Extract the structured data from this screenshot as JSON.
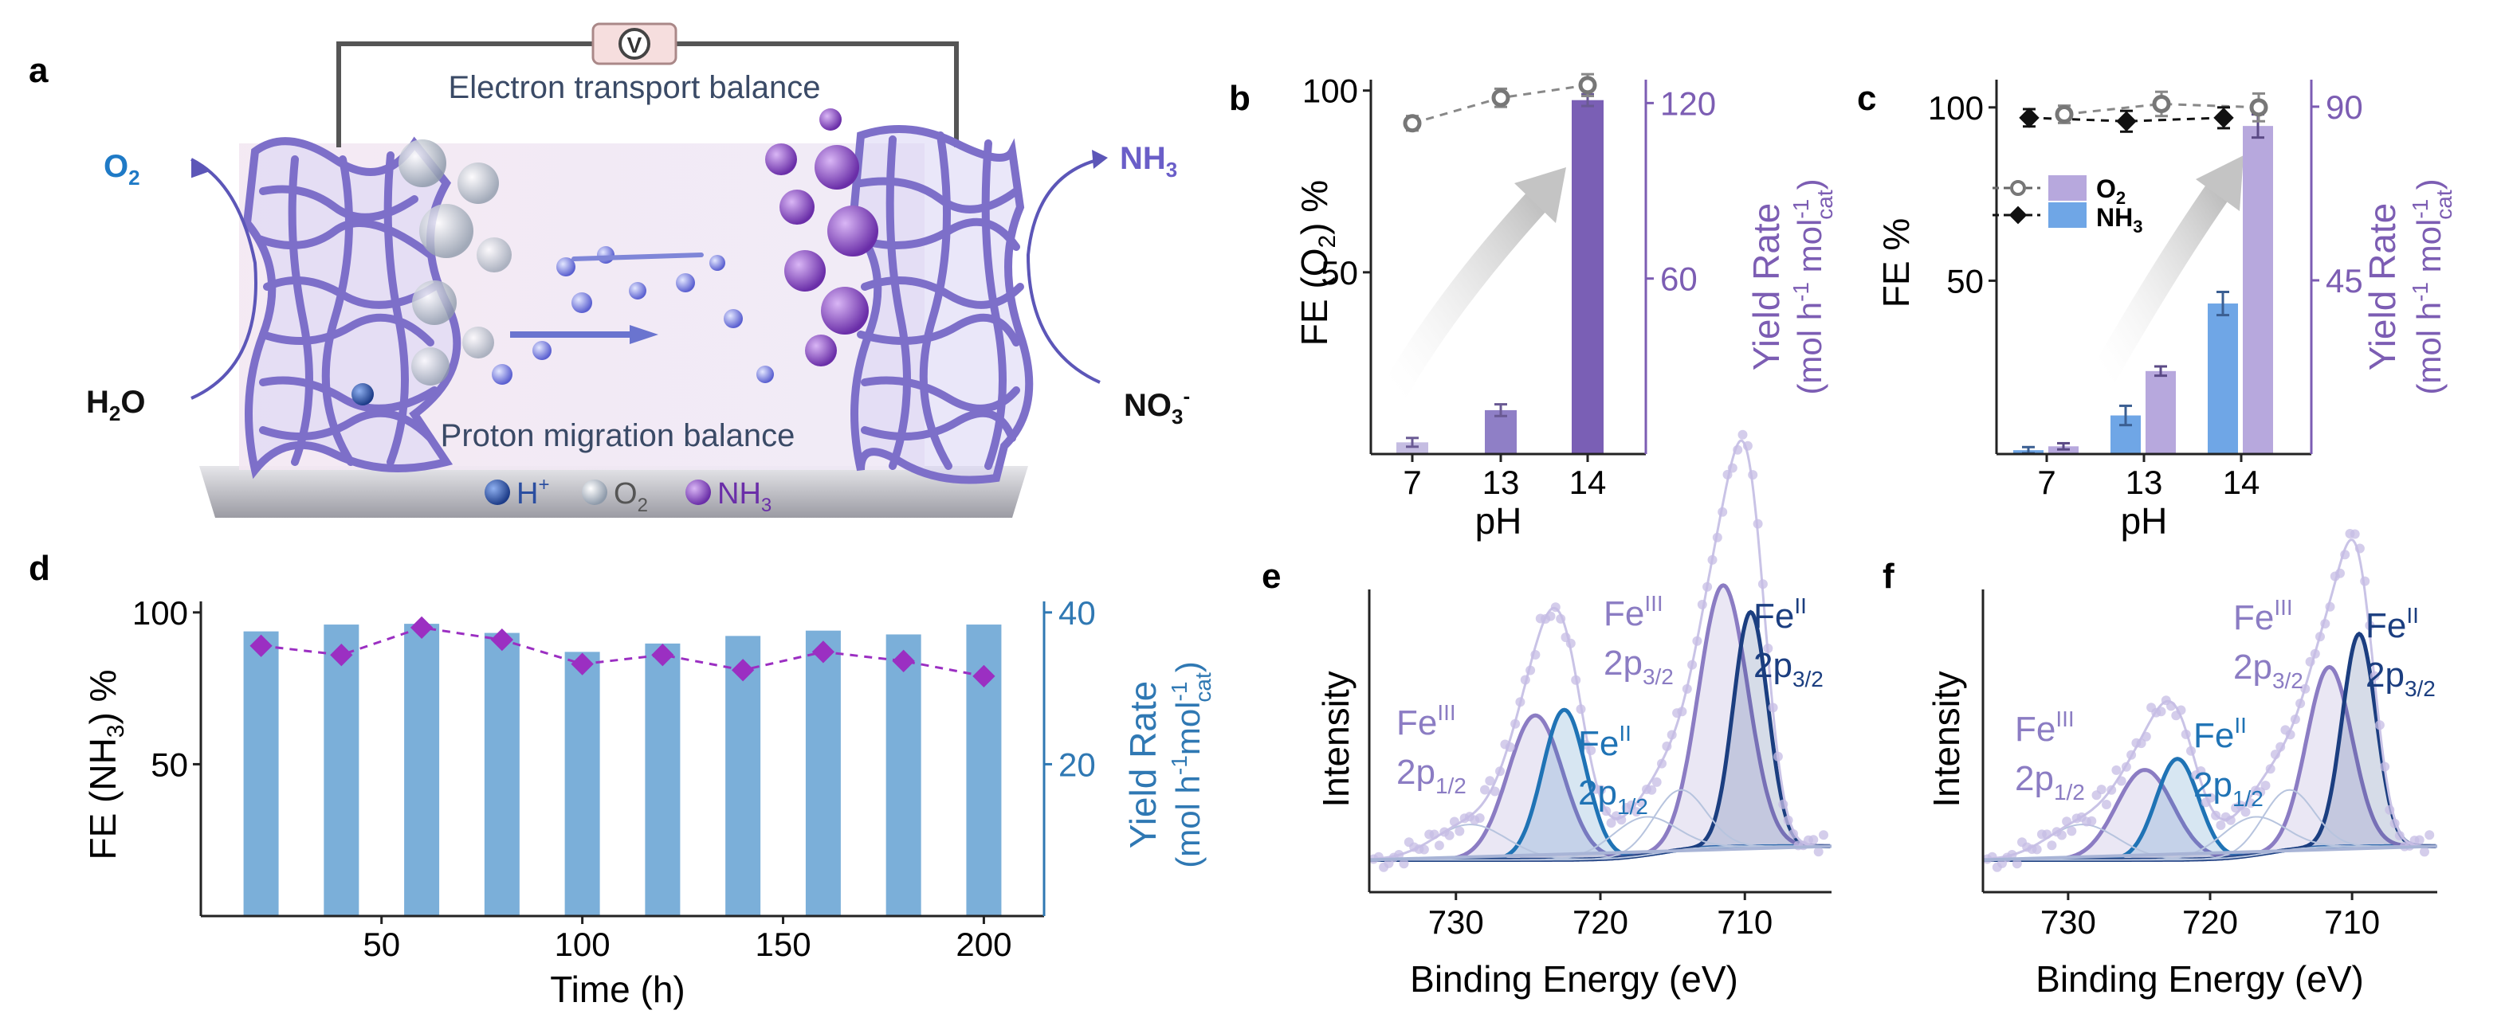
{
  "panel_labels": {
    "a": "a",
    "b": "b",
    "c": "c",
    "d": "d",
    "e": "e",
    "f": "f"
  },
  "panel_a": {
    "voltmeter_symbol": "V",
    "electron_text": "Electron transport balance",
    "proton_text": "Proton migration balance",
    "o2_out": "O",
    "o2_out_sub": "2",
    "h2o_in": "H",
    "h2o_in_sub": "2",
    "h2o_in_tail": "O",
    "nh3_out": "NH",
    "nh3_out_sub": "3",
    "no3_in": "NO",
    "no3_in_sub": "3",
    "no3_in_sup": "-",
    "legend": {
      "h": "H",
      "h_sup": "+",
      "o2": "O",
      "o2_sub": "2",
      "nh3": "NH",
      "nh3_sub": "3"
    },
    "colors": {
      "h": "#2b4ea0",
      "o2": "#c9d2de",
      "nh3": "#8457b6",
      "mesh": "#7d6fc9",
      "o2_label": "#1f7ac6",
      "nh3_label": "#6a5ec8"
    }
  },
  "chart_data": [
    {
      "panel": "b",
      "type": "bar+line",
      "categories": [
        "7",
        "13",
        "14"
      ],
      "xlabel": "pH",
      "ylabel_left": "FE (O2) %",
      "ylabel_right_1": "Yield Rate",
      "ylabel_right_2": "(mol h-1 mol-1cat)",
      "left_ticks": [
        "100",
        "50"
      ],
      "left_tick_values": [
        100,
        50
      ],
      "ylim_left": [
        0,
        103
      ],
      "right_ticks": [
        "120",
        "60"
      ],
      "right_tick_values": [
        120,
        60
      ],
      "ylim_right": [
        0,
        128
      ],
      "series": [
        {
          "name": "FE (O2)",
          "axis": "left",
          "kind": "line",
          "values": [
            91,
            98,
            101.5
          ],
          "errors": [
            2,
            2.5,
            3
          ]
        },
        {
          "name": "Yield Rate",
          "axis": "right",
          "kind": "bar",
          "values": [
            4,
            15,
            121
          ],
          "errors": [
            1.5,
            2,
            2
          ],
          "colors": [
            "#c5bde2",
            "#8f7fc6",
            "#7a5fb5"
          ]
        }
      ]
    },
    {
      "panel": "c",
      "type": "bar+line",
      "categories": [
        "7",
        "13",
        "14"
      ],
      "xlabel": "pH",
      "ylabel_left": "FE %",
      "ylabel_right_1": "Yield Rate",
      "ylabel_right_2": "(mol h-1 mol-1cat)",
      "left_ticks": [
        "100",
        "50"
      ],
      "left_tick_values": [
        100,
        50
      ],
      "ylim_left": [
        0,
        108
      ],
      "right_ticks": [
        "90",
        "45"
      ],
      "right_tick_values": [
        90,
        45
      ],
      "ylim_right": [
        0,
        97
      ],
      "legend": [
        {
          "label": "O2"
        },
        {
          "label": "NH3"
        }
      ],
      "series": [
        {
          "name": "O2 FE",
          "axis": "left",
          "kind": "line",
          "values": [
            98,
            101,
            100
          ],
          "errors": [
            2.5,
            3.5,
            4
          ]
        },
        {
          "name": "NH3 FE",
          "axis": "left",
          "kind": "line",
          "values": [
            97,
            96,
            97
          ],
          "errors": [
            2.5,
            3,
            3
          ]
        },
        {
          "name": "NH3 yield",
          "axis": "right",
          "kind": "bar",
          "values": [
            1,
            10,
            39
          ],
          "errors": [
            0.8,
            2.5,
            3
          ],
          "color": "#6fa6e6"
        },
        {
          "name": "O2 yield",
          "axis": "right",
          "kind": "bar",
          "values": [
            2,
            21.5,
            85
          ],
          "errors": [
            0.8,
            1.2,
            3
          ],
          "color": "#b7a8dd"
        }
      ]
    },
    {
      "panel": "d",
      "type": "bar+line",
      "x": [
        20,
        40,
        60,
        80,
        100,
        120,
        140,
        160,
        180,
        200
      ],
      "xticks": [
        "50",
        "100",
        "150",
        "200"
      ],
      "xtick_values": [
        50,
        100,
        150,
        200
      ],
      "xlim": [
        5,
        215
      ],
      "xlabel": "Time (h)",
      "ylabel_left": "FE (NH3) %",
      "ylabel_right_1": "Yield Rate",
      "ylabel_right_2": "(mol h-1mol-1cat)",
      "left_ticks": [
        "100",
        "50"
      ],
      "left_tick_values": [
        100,
        50
      ],
      "ylim_left": [
        0,
        100
      ],
      "right_ticks": [
        "40",
        "20"
      ],
      "right_tick_values": [
        40,
        20
      ],
      "ylim_right": [
        0,
        40
      ],
      "series": [
        {
          "name": "Yield Rate",
          "axis": "right",
          "kind": "bar",
          "values": [
            37.5,
            38.4,
            38.5,
            37.3,
            34.8,
            35.9,
            36.9,
            37.6,
            37.1,
            38.4
          ],
          "color": "#7bafd9"
        },
        {
          "name": "FE (NH3)",
          "axis": "left",
          "kind": "line",
          "values": [
            89,
            86,
            95,
            91,
            83,
            86,
            81,
            87,
            84,
            79
          ],
          "color": "#9b2fc2"
        }
      ]
    },
    {
      "panel": "e",
      "type": "spectrum",
      "xlabel": "Binding Energy (eV)",
      "ylabel": "Intensity",
      "xticks": [
        "730",
        "720",
        "710"
      ],
      "xtick_values": [
        730,
        720,
        710
      ],
      "xlim": [
        736,
        704
      ],
      "peaks": [
        {
          "label": "FeIII 2p1/2",
          "center": 724.5,
          "height": 0.53,
          "width": 1.9,
          "color": "#8b7cc3"
        },
        {
          "label": "FeII 2p1/2",
          "center": 722.5,
          "height": 0.55,
          "width": 1.5,
          "color": "#1f73b5"
        },
        {
          "label": "FeIII 2p3/2",
          "center": 711.5,
          "height": 0.96,
          "width": 1.7,
          "color": "#8b7cc3"
        },
        {
          "label": "FeII 2p3/2",
          "center": 709.6,
          "height": 0.86,
          "width": 1.2,
          "color": "#1b3e80"
        }
      ],
      "labels": [
        {
          "main": "Fe",
          "sup": "III",
          "sub_main": "2p",
          "sub": "1/2",
          "color": "#8b7cc3"
        },
        {
          "main": "Fe",
          "sup": "II",
          "sub_main": "2p",
          "sub": "1/2",
          "color": "#1f73b5"
        },
        {
          "main": "Fe",
          "sup": "III",
          "sub_main": "2p",
          "sub": "3/2",
          "color": "#8b7cc3"
        },
        {
          "main": "Fe",
          "sup": "II",
          "sub_main": "2p",
          "sub": "3/2",
          "color": "#1b3e80"
        }
      ]
    },
    {
      "panel": "f",
      "type": "spectrum",
      "xlabel": "Binding Energy (eV)",
      "ylabel": "Intensity",
      "xticks": [
        "730",
        "720",
        "710"
      ],
      "xtick_values": [
        730,
        720,
        710
      ],
      "xlim": [
        736,
        704
      ],
      "peaks": [
        {
          "label": "FeIII 2p1/2",
          "center": 724.6,
          "height": 0.33,
          "width": 2.0,
          "color": "#8b7cc3"
        },
        {
          "label": "FeII 2p1/2",
          "center": 722.3,
          "height": 0.37,
          "width": 1.5,
          "color": "#1f73b5"
        },
        {
          "label": "FeIII 2p3/2",
          "center": 711.6,
          "height": 0.66,
          "width": 1.6,
          "color": "#8b7cc3"
        },
        {
          "label": "FeII 2p3/2",
          "center": 709.5,
          "height": 0.78,
          "width": 1.2,
          "color": "#1b3e80"
        }
      ],
      "labels": [
        {
          "main": "Fe",
          "sup": "III",
          "sub_main": "2p",
          "sub": "1/2",
          "color": "#8b7cc3"
        },
        {
          "main": "Fe",
          "sup": "II",
          "sub_main": "2p",
          "sub": "1/2",
          "color": "#1f73b5"
        },
        {
          "main": "Fe",
          "sup": "III",
          "sub_main": "2p",
          "sub": "3/2",
          "color": "#8b7cc3"
        },
        {
          "main": "Fe",
          "sup": "II",
          "sub_main": "2p",
          "sub": "3/2",
          "color": "#1b3e80"
        }
      ]
    }
  ]
}
